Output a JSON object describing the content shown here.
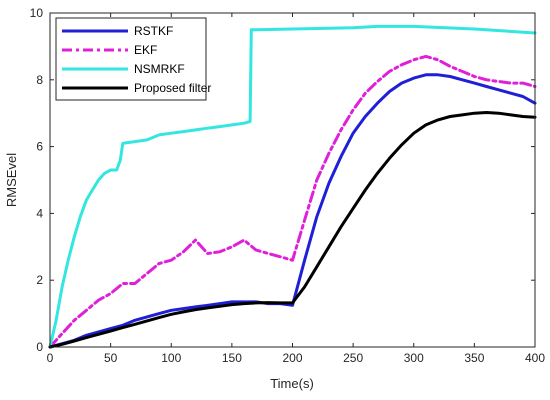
{
  "chart_data": {
    "type": "line",
    "title": "",
    "xlabel": "Time(s)",
    "ylabel": "RMSEvel",
    "xlim": [
      0,
      400
    ],
    "ylim": [
      0,
      10
    ],
    "xticks": [
      0,
      50,
      100,
      150,
      200,
      250,
      300,
      350,
      400
    ],
    "yticks": [
      0,
      2,
      4,
      6,
      8,
      10
    ],
    "grid": false,
    "legend_position": "top-left",
    "series": [
      {
        "name": "RSTKF",
        "color": "#1f1fd6",
        "style": "solid",
        "x": [
          0,
          10,
          20,
          30,
          40,
          50,
          60,
          70,
          80,
          90,
          100,
          110,
          120,
          130,
          140,
          150,
          160,
          170,
          180,
          190,
          200,
          210,
          220,
          230,
          240,
          250,
          260,
          270,
          280,
          290,
          300,
          310,
          320,
          330,
          340,
          350,
          360,
          370,
          380,
          390,
          400
        ],
        "y": [
          0,
          0.1,
          0.2,
          0.35,
          0.45,
          0.55,
          0.65,
          0.8,
          0.9,
          1.0,
          1.1,
          1.15,
          1.2,
          1.25,
          1.3,
          1.35,
          1.35,
          1.35,
          1.3,
          1.3,
          1.25,
          2.6,
          3.9,
          4.9,
          5.7,
          6.4,
          6.9,
          7.3,
          7.65,
          7.9,
          8.05,
          8.15,
          8.15,
          8.1,
          8.0,
          7.9,
          7.8,
          7.7,
          7.6,
          7.5,
          7.3
        ]
      },
      {
        "name": "EKF",
        "color": "#e020d8",
        "style": "dashdot",
        "x": [
          0,
          10,
          20,
          30,
          40,
          50,
          60,
          70,
          80,
          90,
          100,
          110,
          120,
          130,
          140,
          150,
          160,
          170,
          180,
          190,
          200,
          210,
          220,
          230,
          240,
          250,
          260,
          270,
          280,
          290,
          300,
          310,
          320,
          330,
          340,
          350,
          360,
          370,
          380,
          390,
          400
        ],
        "y": [
          0,
          0.4,
          0.8,
          1.1,
          1.4,
          1.6,
          1.9,
          1.9,
          2.2,
          2.5,
          2.6,
          2.85,
          3.2,
          2.8,
          2.85,
          3.0,
          3.2,
          2.9,
          2.8,
          2.7,
          2.6,
          3.8,
          5.0,
          5.8,
          6.5,
          7.1,
          7.6,
          7.95,
          8.25,
          8.45,
          8.6,
          8.7,
          8.6,
          8.4,
          8.25,
          8.1,
          8.0,
          7.95,
          7.9,
          7.9,
          7.8
        ]
      },
      {
        "name": "NSMRKF",
        "color": "#33e6e0",
        "style": "solid",
        "x": [
          0,
          5,
          10,
          15,
          20,
          25,
          30,
          35,
          40,
          45,
          50,
          55,
          58,
          60,
          70,
          80,
          90,
          100,
          110,
          120,
          130,
          140,
          150,
          160,
          165,
          166,
          170,
          200,
          250,
          270,
          300,
          350,
          400
        ],
        "y": [
          0,
          0.8,
          1.8,
          2.6,
          3.3,
          3.9,
          4.4,
          4.7,
          5.0,
          5.2,
          5.3,
          5.3,
          5.6,
          6.1,
          6.15,
          6.2,
          6.35,
          6.4,
          6.45,
          6.5,
          6.55,
          6.6,
          6.65,
          6.7,
          6.75,
          9.5,
          9.5,
          9.52,
          9.56,
          9.6,
          9.6,
          9.52,
          9.4
        ]
      },
      {
        "name": "Proposed filter",
        "color": "#000000",
        "style": "solid",
        "x": [
          0,
          10,
          20,
          30,
          40,
          50,
          60,
          70,
          80,
          90,
          100,
          110,
          120,
          130,
          140,
          150,
          160,
          170,
          180,
          190,
          200,
          210,
          220,
          230,
          240,
          250,
          260,
          270,
          280,
          290,
          300,
          310,
          320,
          330,
          340,
          350,
          360,
          370,
          380,
          390,
          400
        ],
        "y": [
          0,
          0.08,
          0.18,
          0.28,
          0.38,
          0.48,
          0.58,
          0.68,
          0.78,
          0.88,
          0.98,
          1.05,
          1.12,
          1.17,
          1.22,
          1.27,
          1.3,
          1.32,
          1.33,
          1.32,
          1.32,
          1.8,
          2.4,
          3.0,
          3.6,
          4.15,
          4.7,
          5.2,
          5.65,
          6.05,
          6.4,
          6.65,
          6.8,
          6.9,
          6.95,
          7.0,
          7.02,
          7.0,
          6.95,
          6.9,
          6.88
        ]
      }
    ]
  }
}
